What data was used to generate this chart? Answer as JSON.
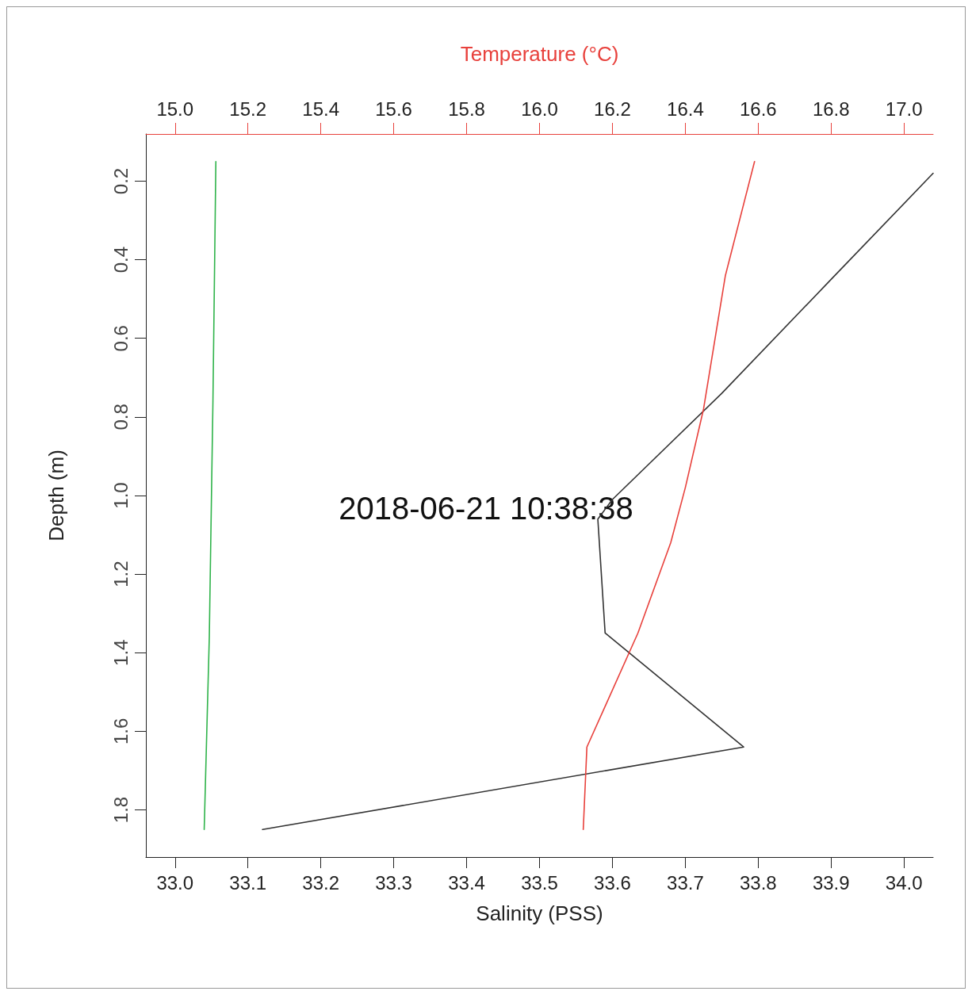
{
  "chart_data": {
    "type": "line",
    "xlabel": "Salinity (PSS)",
    "x2label": "Temperature (°C)",
    "ylabel": "Depth (m)",
    "annotations": [
      "2018-06-21 10:38:38"
    ],
    "xlim": [
      32.96,
      34.04
    ],
    "xticks": [
      {
        "value": 33,
        "label": "33.0"
      },
      33.1,
      33.2,
      33.3,
      33.4,
      33.5,
      33.6,
      33.7,
      33.8,
      33.9,
      {
        "value": 34,
        "label": "34.0"
      }
    ],
    "x2lim": [
      14.92,
      17.08
    ],
    "x2ticks": [
      {
        "value": 15,
        "label": "15.0"
      },
      15.2,
      15.4,
      15.6,
      15.8,
      {
        "value": 16,
        "label": "16.0"
      },
      16.2,
      16.4,
      16.6,
      16.8,
      {
        "value": 17,
        "label": "17.0"
      }
    ],
    "ylim": [
      1.92,
      0.08
    ],
    "yticks": [
      0.2,
      0.4,
      0.6,
      0.8,
      {
        "value": 1,
        "label": "1.0"
      },
      1.2,
      1.4,
      1.6,
      1.8
    ],
    "grid": false,
    "marker": "none",
    "line_style": "solid",
    "series": [
      {
        "color": "#333333",
        "x": [
          34.04,
          33.9,
          33.75,
          33.6,
          33.58,
          33.59,
          33.78,
          33.12
        ],
        "values": [
          0.18,
          0.45,
          0.74,
          1.01,
          1.06,
          1.35,
          1.64,
          1.85
        ]
      },
      {
        "color": "#e8413c",
        "axis": "x2",
        "x": [
          16.59,
          16.51,
          16.45,
          16.4,
          16.36,
          16.27,
          16.13,
          16.12
        ],
        "values": [
          0.15,
          0.44,
          0.78,
          0.98,
          1.12,
          1.35,
          1.64,
          1.85
        ]
      },
      {
        "color": "#2fb34a",
        "x": [
          33.056,
          33.052,
          33.047,
          33.04
        ],
        "values": [
          0.15,
          0.76,
          1.36,
          1.85
        ]
      }
    ]
  }
}
